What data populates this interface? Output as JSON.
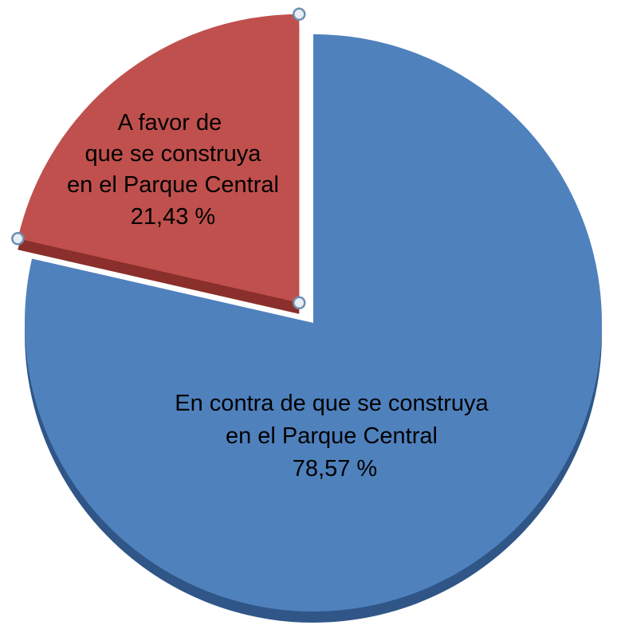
{
  "chart_data": {
    "type": "pie",
    "title": "",
    "slices": [
      {
        "label_lines": [
          "En contra de que se construya",
          "en el Parque Central"
        ],
        "value_label": "78,57 %",
        "value": 78.57,
        "color": "#4f81bd",
        "exploded": false
      },
      {
        "label_lines": [
          "A favor de",
          "que se construya",
          "en el Parque Central"
        ],
        "value_label": "21,43 %",
        "value": 21.43,
        "color": "#c0504d",
        "edge_color": "#8a2f2b",
        "exploded": true,
        "selected": true
      }
    ],
    "start_angle": "12 o'clock",
    "direction": "clockwise",
    "style": "3D",
    "legend": "none"
  }
}
